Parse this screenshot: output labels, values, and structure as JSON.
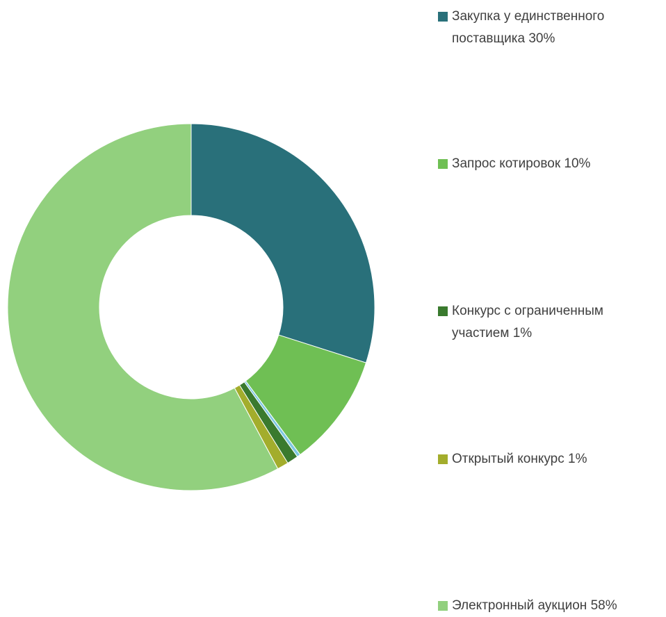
{
  "chart_data": {
    "type": "donut",
    "categories": [
      "Закупка у единственного поставщика 30%",
      "Запрос котировок 10%",
      null,
      "Конкурс с ограниченным участием 1%",
      "Открытый конкурс 1%",
      "Электронный аукцион 58%"
    ],
    "values": [
      30,
      10,
      0.3,
      1,
      1,
      58
    ],
    "colors": [
      "#29707a",
      "#6fbf54",
      "#7ec8e3",
      "#3a7a2e",
      "#a3ad2c",
      "#92d07e"
    ],
    "legend": "right"
  }
}
